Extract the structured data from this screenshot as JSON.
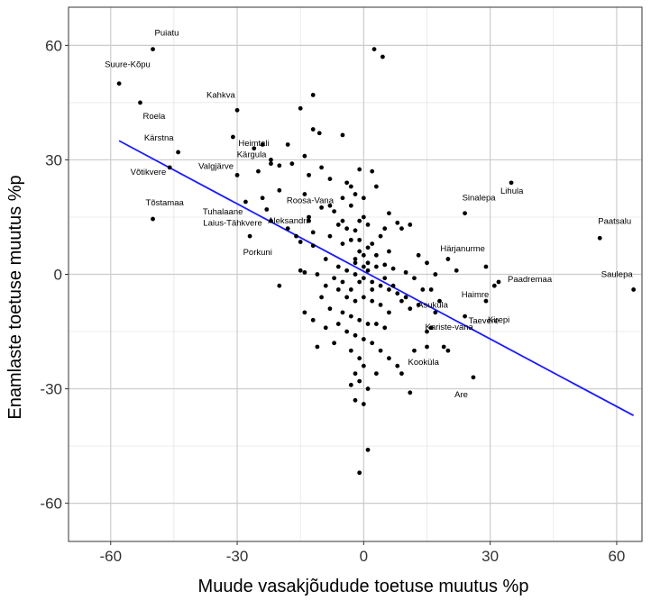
{
  "chart_data": {
    "type": "scatter",
    "title": "",
    "xlabel": "Muude vasakjõudude toetuse muutus %p",
    "ylabel": "Enamlaste toetuse muutus %p",
    "xlim": [
      -70,
      66
    ],
    "ylim": [
      -70,
      70
    ],
    "xticks": [
      -60,
      -30,
      0,
      30,
      60
    ],
    "yticks": [
      -60,
      -30,
      0,
      30,
      60
    ],
    "xtick_labels": [
      "-60",
      "-30",
      "0",
      "30",
      "60"
    ],
    "ytick_labels": [
      "-60",
      "-30",
      "0",
      "30",
      "60"
    ],
    "grid": true,
    "colors": {
      "points": "#000000",
      "trend_line": "#1a1aff",
      "major_grid": "#cccccc",
      "minor_grid": "#e6e6e6",
      "panel_border": "#333333"
    },
    "trend_line": {
      "x": [
        -58,
        64
      ],
      "y": [
        35,
        -37
      ]
    },
    "labeled_points": [
      {
        "label": "Puiatu",
        "x": -50,
        "y": 59
      },
      {
        "label": "Suure-Kõpu",
        "x": -58,
        "y": 50
      },
      {
        "label": "Roela",
        "x": -53,
        "y": 45
      },
      {
        "label": "Kahkva",
        "x": -30,
        "y": 43
      },
      {
        "label": "Heimtali",
        "x": -31,
        "y": 36
      },
      {
        "label": "Kärstna",
        "x": -44,
        "y": 32
      },
      {
        "label": "Kärgula",
        "x": -22,
        "y": 29
      },
      {
        "label": "Võtikvere",
        "x": -46,
        "y": 28
      },
      {
        "label": "Valgjärve",
        "x": -30,
        "y": 26
      },
      {
        "label": "Tuhalaane",
        "x": -28,
        "y": 19
      },
      {
        "label": "Roosa-Vana",
        "x": -14,
        "y": 21
      },
      {
        "label": "Tõstamaa",
        "x": -50,
        "y": 14.5
      },
      {
        "label": "Laius-Tähkvere",
        "x": -23,
        "y": 17
      },
      {
        "label": "Aleksandri",
        "x": -13,
        "y": 14
      },
      {
        "label": "Porkuni",
        "x": -20,
        "y": -3
      },
      {
        "label": "Sinalepa",
        "x": 24,
        "y": 16
      },
      {
        "label": "Lihula",
        "x": 35,
        "y": 24
      },
      {
        "label": "Paatsalu",
        "x": 56,
        "y": 9.5
      },
      {
        "label": "Härjanurme",
        "x": 29,
        "y": 2
      },
      {
        "label": "Paadremaa",
        "x": 32,
        "y": -2
      },
      {
        "label": "Haimre",
        "x": 31,
        "y": -3
      },
      {
        "label": "Saulepa",
        "x": 64,
        "y": -4
      },
      {
        "label": "Kirepi",
        "x": 29,
        "y": -7
      },
      {
        "label": "Asuküla",
        "x": 13,
        "y": -8
      },
      {
        "label": "Taevere",
        "x": 24,
        "y": -11
      },
      {
        "label": "Kariste-vana",
        "x": 15,
        "y": -15
      },
      {
        "label": "Kooküla",
        "x": 20,
        "y": -20
      },
      {
        "label": "Are",
        "x": 26,
        "y": -27
      }
    ],
    "points": [
      [
        2.5,
        59
      ],
      [
        4.5,
        57
      ],
      [
        -12,
        47
      ],
      [
        -10.5,
        37
      ],
      [
        -15,
        43.5
      ],
      [
        -5,
        36.5
      ],
      [
        -22,
        30
      ],
      [
        -17,
        29
      ],
      [
        -20,
        28.5
      ],
      [
        -10,
        28
      ],
      [
        -13,
        26
      ],
      [
        -8,
        25
      ],
      [
        -4,
        24
      ],
      [
        -2,
        21
      ],
      [
        -5,
        20
      ],
      [
        -10,
        17.5
      ],
      [
        -7,
        16.5
      ],
      [
        0,
        20
      ],
      [
        -3,
        18
      ],
      [
        -1,
        14
      ],
      [
        0,
        15
      ],
      [
        2,
        27
      ],
      [
        -1,
        27.5
      ],
      [
        3,
        23
      ],
      [
        -3,
        23
      ],
      [
        -13,
        15
      ],
      [
        -5,
        14
      ],
      [
        1,
        13
      ],
      [
        -4,
        12
      ],
      [
        -2,
        11.5
      ],
      [
        -8,
        10
      ],
      [
        -15,
        8.5
      ],
      [
        -12,
        7.5
      ],
      [
        -5,
        8
      ],
      [
        -1,
        9
      ],
      [
        1,
        7
      ],
      [
        4,
        10
      ],
      [
        9,
        12
      ],
      [
        11,
        13
      ],
      [
        8,
        13.5
      ],
      [
        6,
        6
      ],
      [
        3,
        5
      ],
      [
        0,
        5
      ],
      [
        -2,
        3
      ],
      [
        -6,
        2
      ],
      [
        -9,
        4
      ],
      [
        -14,
        0.5
      ],
      [
        -11,
        0
      ],
      [
        -15,
        1
      ],
      [
        -2,
        0
      ],
      [
        1,
        1
      ],
      [
        3,
        2
      ],
      [
        5,
        2.5
      ],
      [
        7,
        1.5
      ],
      [
        10,
        0.5
      ],
      [
        12,
        -1
      ],
      [
        0,
        -1
      ],
      [
        -1,
        -2
      ],
      [
        2,
        -2
      ],
      [
        4,
        -3
      ],
      [
        6,
        -4
      ],
      [
        8,
        -5
      ],
      [
        10,
        -6
      ],
      [
        14,
        -4
      ],
      [
        -3,
        -4
      ],
      [
        -6,
        -4
      ],
      [
        -9,
        -3
      ],
      [
        -4,
        -6
      ],
      [
        -2,
        -7
      ],
      [
        0,
        -6
      ],
      [
        2,
        -7
      ],
      [
        4,
        -8
      ],
      [
        6,
        -10
      ],
      [
        9,
        -7
      ],
      [
        11,
        -9
      ],
      [
        -10,
        -6
      ],
      [
        -8,
        -9
      ],
      [
        -5,
        -10
      ],
      [
        -3,
        -11
      ],
      [
        -1,
        -12
      ],
      [
        1,
        -13
      ],
      [
        3,
        -13
      ],
      [
        5,
        -14
      ],
      [
        -6,
        -13
      ],
      [
        -4,
        -15
      ],
      [
        -2,
        -16
      ],
      [
        0,
        -17
      ],
      [
        2,
        -18
      ],
      [
        4,
        -20
      ],
      [
        6,
        -22
      ],
      [
        8,
        -24
      ],
      [
        -7,
        -18
      ],
      [
        -3,
        -20
      ],
      [
        -1,
        -22
      ],
      [
        0,
        -24
      ],
      [
        3,
        -26
      ],
      [
        -2,
        -26
      ],
      [
        -1,
        -28
      ],
      [
        1,
        -30
      ],
      [
        -3,
        -29
      ],
      [
        -2,
        -33
      ],
      [
        0,
        -34
      ],
      [
        11,
        -31
      ],
      [
        9,
        -26
      ],
      [
        12,
        -20
      ],
      [
        15,
        -19
      ],
      [
        16,
        -14
      ],
      [
        17,
        -10
      ],
      [
        19,
        -19
      ],
      [
        -14,
        -10
      ],
      [
        -12,
        -12
      ],
      [
        -9,
        -14
      ],
      [
        -11,
        -19
      ],
      [
        1,
        -46
      ],
      [
        -1,
        -52
      ],
      [
        13,
        5
      ],
      [
        15,
        3
      ],
      [
        17,
        0
      ],
      [
        16,
        -4
      ],
      [
        18,
        -7
      ],
      [
        20,
        4
      ],
      [
        22,
        1
      ],
      [
        -2,
        4
      ],
      [
        2,
        -4
      ],
      [
        -4,
        1
      ],
      [
        5,
        -1
      ],
      [
        -7,
        -1
      ],
      [
        7,
        -3
      ],
      [
        -5,
        -2
      ],
      [
        0,
        2
      ],
      [
        1,
        3
      ],
      [
        -1,
        6
      ],
      [
        2,
        8
      ],
      [
        -3,
        9
      ],
      [
        5,
        12
      ],
      [
        6,
        16
      ],
      [
        -8,
        18
      ],
      [
        -6,
        13
      ],
      [
        -12,
        11
      ],
      [
        -16,
        10
      ],
      [
        -18,
        12
      ],
      [
        -25,
        27
      ],
      [
        -26,
        33
      ],
      [
        -24,
        34
      ],
      [
        -18,
        34
      ],
      [
        -12,
        38
      ],
      [
        -14,
        31
      ],
      [
        -20,
        22
      ],
      [
        -24,
        20
      ],
      [
        -22,
        14
      ],
      [
        -27,
        10
      ]
    ]
  }
}
